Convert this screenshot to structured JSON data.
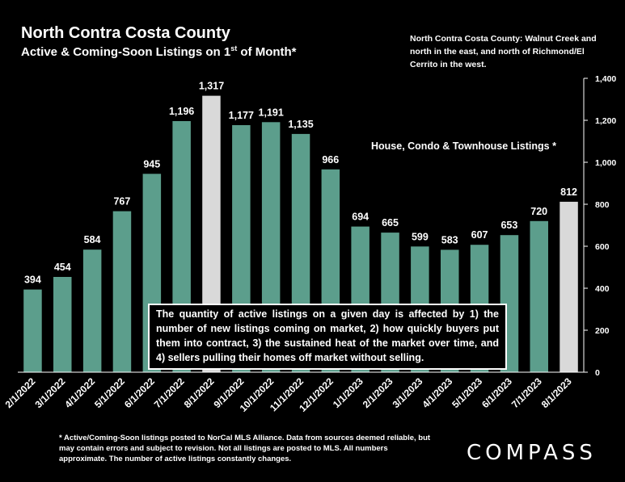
{
  "header": {
    "title": "North Contra Costa County",
    "subtitle_main": "Active & Coming-Soon Listings on 1",
    "subtitle_sup": "st",
    "subtitle_tail": " of Month*"
  },
  "region_note": "North Contra Costa County: Walnut Creek and north in the east, and north of Richmond/El Cerrito in the west.",
  "series_label": "House, Condo & Townhouse Listings *",
  "callout": "The quantity of active listings on a given day is affected by 1) the number of new listings coming on market, 2) how quickly buyers put them into contract, 3) the sustained heat of the market over time, and 4) sellers pulling their homes off market without selling.",
  "footnote": "* Active/Coming-Soon listings posted to NorCal MLS Alliance.  Data from sources deemed reliable, but may contain errors and subject to revision.  Not all listings are posted to MLS. All numbers approximate. The number of active listings constantly changes.",
  "logo": "COMPASS",
  "colors": {
    "bar": "#5c9e8c",
    "highlight": "#d9d9d9",
    "axis": "#ffffff"
  },
  "chart_data": {
    "type": "bar",
    "categories": [
      "2/1/2022",
      "3/1/2022",
      "4/1/2022",
      "5/1/2022",
      "6/1/2022",
      "7/1/2022",
      "8/1/2022",
      "9/1/2022",
      "10/1/2022",
      "11/1/2022",
      "12/1/2022",
      "1/1/2023",
      "2/1/2023",
      "3/1/2023",
      "4/1/2023",
      "5/1/2023",
      "6/1/2023",
      "7/1/2023",
      "8/1/2023"
    ],
    "values": [
      394,
      454,
      584,
      767,
      945,
      1196,
      1317,
      1177,
      1191,
      1135,
      966,
      694,
      665,
      599,
      583,
      607,
      653,
      720,
      812
    ],
    "data_labels": [
      "394",
      "454",
      "584",
      "767",
      "945",
      "1,196",
      "1,317",
      "1,177",
      "1,191",
      "1,135",
      "966",
      "694",
      "665",
      "599",
      "583",
      "607",
      "653",
      "720",
      "812"
    ],
    "highlighted": [
      "8/1/2022",
      "8/1/2023"
    ],
    "ylim": [
      0,
      1400
    ],
    "yticks": [
      0,
      200,
      400,
      600,
      800,
      1000,
      1200,
      1400
    ],
    "ytick_labels": [
      "0",
      "200",
      "400",
      "600",
      "800",
      "1,000",
      "1,200",
      "1,400"
    ],
    "yaxis_position": "right",
    "grid": false,
    "xlabel": "",
    "ylabel": ""
  }
}
